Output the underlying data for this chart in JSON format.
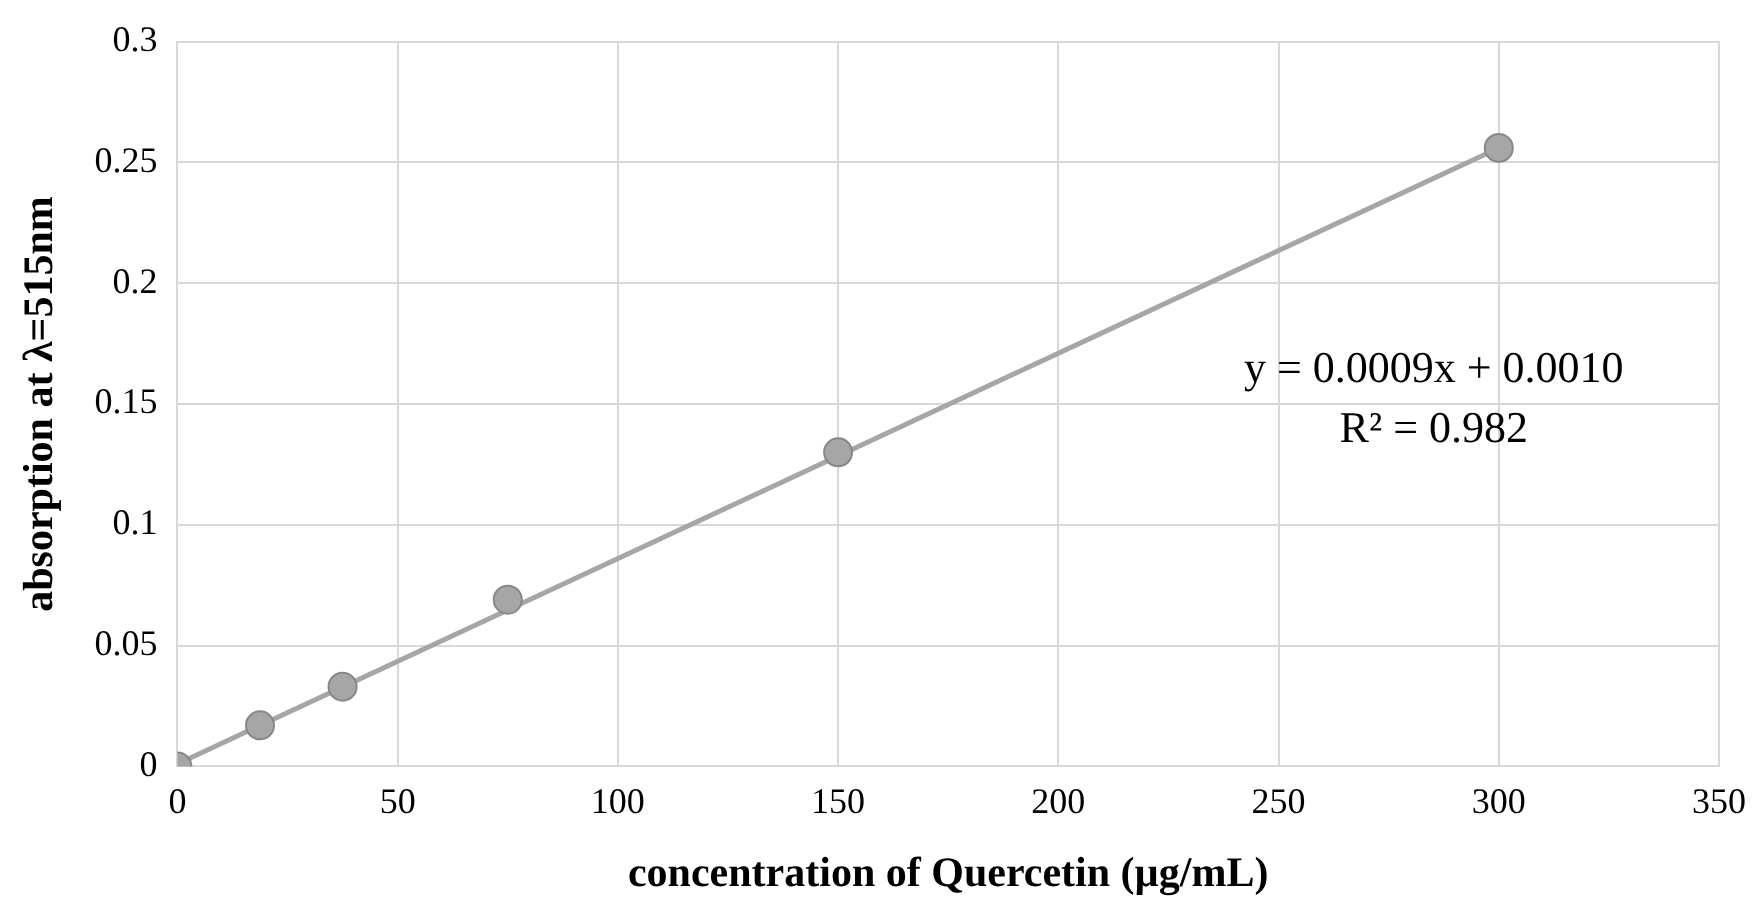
{
  "chart_data": {
    "type": "scatter",
    "xlabel": "concentration of Quercetin (µg/mL)",
    "ylabel": "absorption at λ=515nm",
    "series": [
      {
        "type": "line",
        "color": "#a6a6a6",
        "x": [
          0,
          300
        ],
        "values": [
          0.001,
          0.256
        ],
        "marker": "none"
      },
      {
        "type": "scatter",
        "color": "#a6a6a6",
        "x": [
          0,
          18.75,
          37.5,
          75,
          150,
          300
        ],
        "values": [
          0,
          0.017,
          0.033,
          0.069,
          0.13,
          0.256
        ],
        "marker": "circle"
      }
    ],
    "xlim": [
      0,
      350
    ],
    "xticks": [
      0,
      50,
      100,
      150,
      200,
      250,
      300,
      350
    ],
    "ylim": [
      0,
      0.3
    ],
    "yticks": [
      0,
      0.05,
      0.1,
      0.15,
      0.2,
      0.25,
      0.3
    ],
    "grid": true,
    "legend": false,
    "annotations": [
      "y = 0.0009x + 0.0010",
      "R² = 0.982"
    ]
  }
}
